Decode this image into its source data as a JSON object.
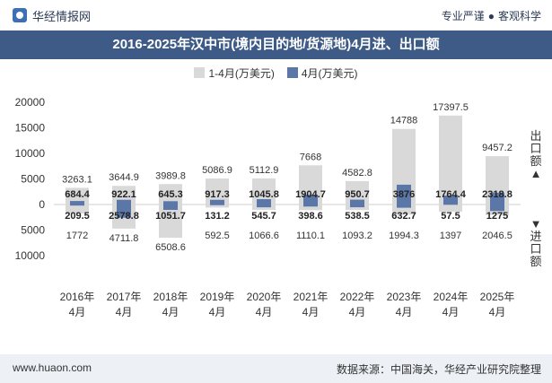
{
  "header": {
    "site_name": "华经情报网",
    "slogan_left": "专业严谨",
    "slogan_right": "客观科学"
  },
  "footer": {
    "website": "www.huaon.com",
    "source": "数据来源：中国海关，华经产业研究院整理"
  },
  "side_labels": {
    "export": [
      "出",
      "口",
      "额"
    ],
    "import": [
      "进",
      "口",
      "额"
    ]
  },
  "colors": {
    "title_bg": "#3e5a87",
    "cumulative": "#d9d9d9",
    "monthly": "#5b77a8",
    "footer_bg": "#edf0f5"
  },
  "chart_data": {
    "type": "bar",
    "title": "2016-2025年汉中市(境内目的地/货源地)4月进、出口额",
    "categories": [
      "2016年\n4月",
      "2017年\n4月",
      "2018年\n4月",
      "2019年\n4月",
      "2020年\n4月",
      "2021年\n4月",
      "2022年\n4月",
      "2023年\n4月",
      "2024年\n4月",
      "2025年\n4月"
    ],
    "category_lines": [
      [
        "2016年",
        "4月"
      ],
      [
        "2017年",
        "4月"
      ],
      [
        "2018年",
        "4月"
      ],
      [
        "2019年",
        "4月"
      ],
      [
        "2020年",
        "4月"
      ],
      [
        "2021年",
        "4月"
      ],
      [
        "2022年",
        "4月"
      ],
      [
        "2023年",
        "4月"
      ],
      [
        "2024年",
        "4月"
      ],
      [
        "2025年",
        "4月"
      ]
    ],
    "series": [
      {
        "name": "1-4月(万美元)",
        "export_values": [
          3263.1,
          3644.9,
          3989.8,
          5086.9,
          5112.9,
          7668,
          4582.8,
          14788,
          17397.5,
          9457.2
        ],
        "import_values": [
          1772,
          4711.8,
          6508.6,
          592.5,
          1066.6,
          1110.1,
          1093.2,
          1994.3,
          1397,
          2046.5
        ]
      },
      {
        "name": "4月(万美元)",
        "export_values": [
          684.4,
          922.1,
          645.3,
          917.3,
          1045.8,
          1904.7,
          950.7,
          3876,
          1764.4,
          2318.8
        ],
        "import_values": [
          209.5,
          2578.8,
          1051.7,
          131.2,
          545.7,
          398.6,
          538.5,
          632.7,
          57.5,
          1275
        ]
      }
    ],
    "export_labels": {
      "cumulative": [
        "3263.1",
        "3644.9",
        "3989.8",
        "5086.9",
        "5112.9",
        "7668",
        "4582.8",
        "14788",
        "17397.5",
        "9457.2"
      ],
      "monthly": [
        "684.4",
        "922.1",
        "645.3",
        "917.3",
        "1045.8",
        "1904.7",
        "950.7",
        "3876",
        "1764.4",
        "2318.8"
      ]
    },
    "import_labels": {
      "cumulative": [
        "1772",
        "4711.8",
        "6508.6",
        "592.5",
        "1066.6",
        "1110.1",
        "1093.2",
        "1994.3",
        "1397",
        "2046.5"
      ],
      "monthly": [
        "209.5",
        "2578.8",
        "1051.7",
        "131.2",
        "545.7",
        "398.6",
        "538.5",
        "632.7",
        "57.5",
        "1275"
      ]
    },
    "y_ticks": [
      20000,
      15000,
      10000,
      5000,
      0,
      -5000,
      -10000
    ],
    "y_tick_labels": [
      "20000",
      "15000",
      "10000",
      "5000",
      "0",
      "5000",
      "10000"
    ],
    "ylim": [
      -10000,
      20000
    ],
    "xlabel": "",
    "ylabel": "",
    "legend_position": "top-center",
    "grid": false
  }
}
